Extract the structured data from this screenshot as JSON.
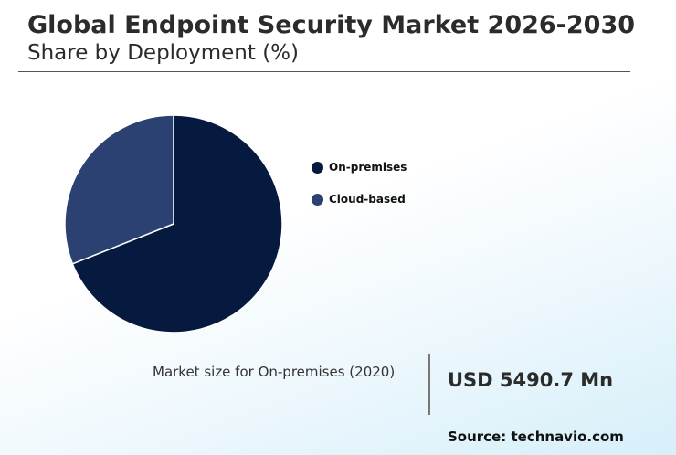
{
  "header": {
    "title": "Global Endpoint Security Market 2026-2030",
    "subtitle": "Share by Deployment (%)"
  },
  "chart_data": {
    "type": "pie",
    "title": "Global Endpoint Security Market 2026-2030",
    "subtitle": "Share by Deployment (%)",
    "categories": [
      "On-premises",
      "Cloud-based"
    ],
    "values": [
      69,
      31
    ],
    "colors": [
      "#061a40",
      "#2a4172"
    ],
    "legend": "right",
    "start_angle_deg": 0,
    "direction": "clockwise"
  },
  "callout": {
    "label": "Market size for On-premises (2020)",
    "value": "USD 5490.7 Mn"
  },
  "footer": {
    "source": "Source: technavio.com"
  }
}
